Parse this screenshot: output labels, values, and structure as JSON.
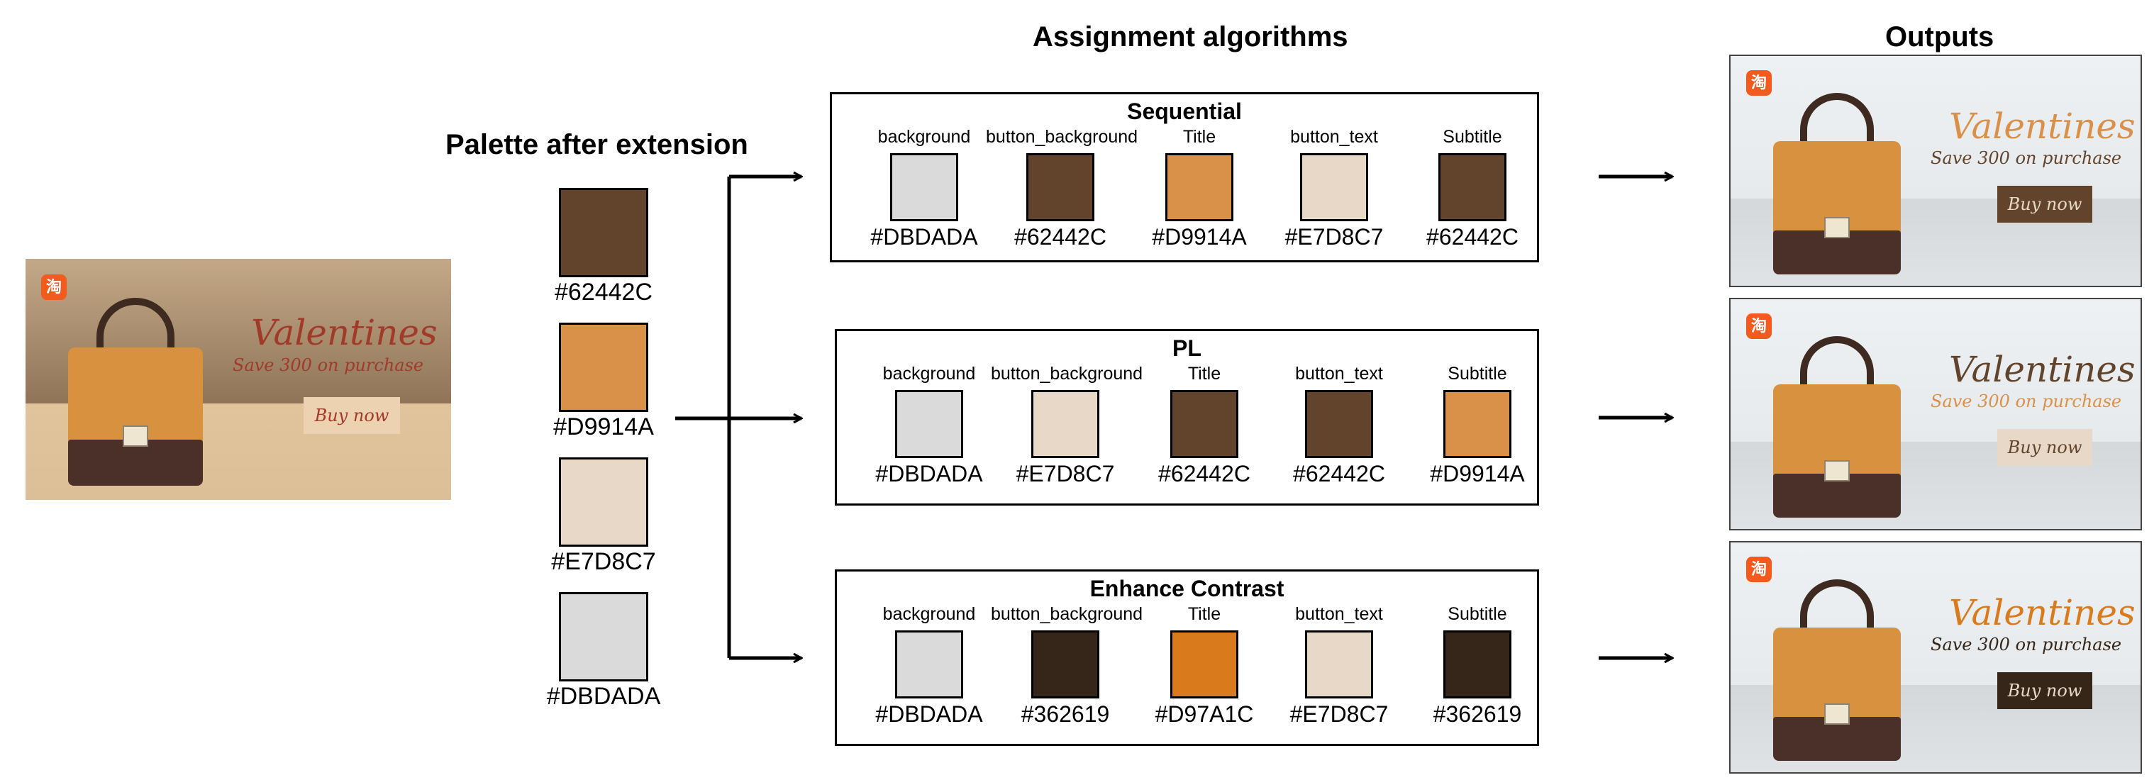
{
  "headings": {
    "palette": "Palette after extension",
    "algorithms": "Assignment  algorithms",
    "outputs": "Outputs"
  },
  "banner_text": {
    "title": "Valentines",
    "subtitle": "Save 300 on purchase",
    "button": "Buy now",
    "app_icon": "淘"
  },
  "palette": [
    {
      "hex": "#62442C",
      "color": "#62442C"
    },
    {
      "hex": "#D9914A",
      "color": "#D9914A"
    },
    {
      "hex": "#E7D8C7",
      "color": "#E7D8C7"
    },
    {
      "hex": "#DBDADA",
      "color": "#DBDADA"
    }
  ],
  "algorithms": [
    {
      "title": "Sequential",
      "slots": [
        {
          "role": "background",
          "hex": "#DBDADA",
          "color": "#DBDADA"
        },
        {
          "role": "button_background",
          "hex": "#62442C",
          "color": "#62442C"
        },
        {
          "role": "Title",
          "hex": "#D9914A",
          "color": "#D9914A"
        },
        {
          "role": "button_text",
          "hex": "#E7D8C7",
          "color": "#E7D8C7"
        },
        {
          "role": "Subtitle",
          "hex": "#62442C",
          "color": "#62442C"
        }
      ]
    },
    {
      "title": "PL",
      "slots": [
        {
          "role": "background",
          "hex": "#DBDADA",
          "color": "#DBDADA"
        },
        {
          "role": "button_background",
          "hex": "#E7D8C7",
          "color": "#E7D8C7"
        },
        {
          "role": "Title",
          "hex": "#62442C",
          "color": "#62442C"
        },
        {
          "role": "button_text",
          "hex": "#62442C",
          "color": "#62442C"
        },
        {
          "role": "Subtitle",
          "hex": "#D9914A",
          "color": "#D9914A"
        }
      ]
    },
    {
      "title": "Enhance Contrast",
      "slots": [
        {
          "role": "background",
          "hex": "#DBDADA",
          "color": "#DBDADA"
        },
        {
          "role": "button_background",
          "hex": "#362619",
          "color": "#362619"
        },
        {
          "role": "Title",
          "hex": "#D97A1C",
          "color": "#D97A1C"
        },
        {
          "role": "button_text",
          "hex": "#E7D8C7",
          "color": "#E7D8C7"
        },
        {
          "role": "Subtitle",
          "hex": "#362619",
          "color": "#362619"
        }
      ]
    }
  ],
  "colors": {
    "input_title": "#a23a2a",
    "input_subtitle": "#a23a2a",
    "input_button_bg": "#ecd2b0",
    "input_button_text": "#a23a2a",
    "outputs": [
      {
        "title": "#D9914A",
        "subtitle": "#62442C",
        "button_bg": "#62442C",
        "button_text": "#E7D8C7"
      },
      {
        "title": "#62442C",
        "subtitle": "#D9914A",
        "button_bg": "#E7D8C7",
        "button_text": "#62442C"
      },
      {
        "title": "#D97A1C",
        "subtitle": "#362619",
        "button_bg": "#362619",
        "button_text": "#E7D8C7"
      }
    ]
  },
  "icons": [
    "handbag-image",
    "app-logo-icon",
    "arrow-right-icon"
  ]
}
